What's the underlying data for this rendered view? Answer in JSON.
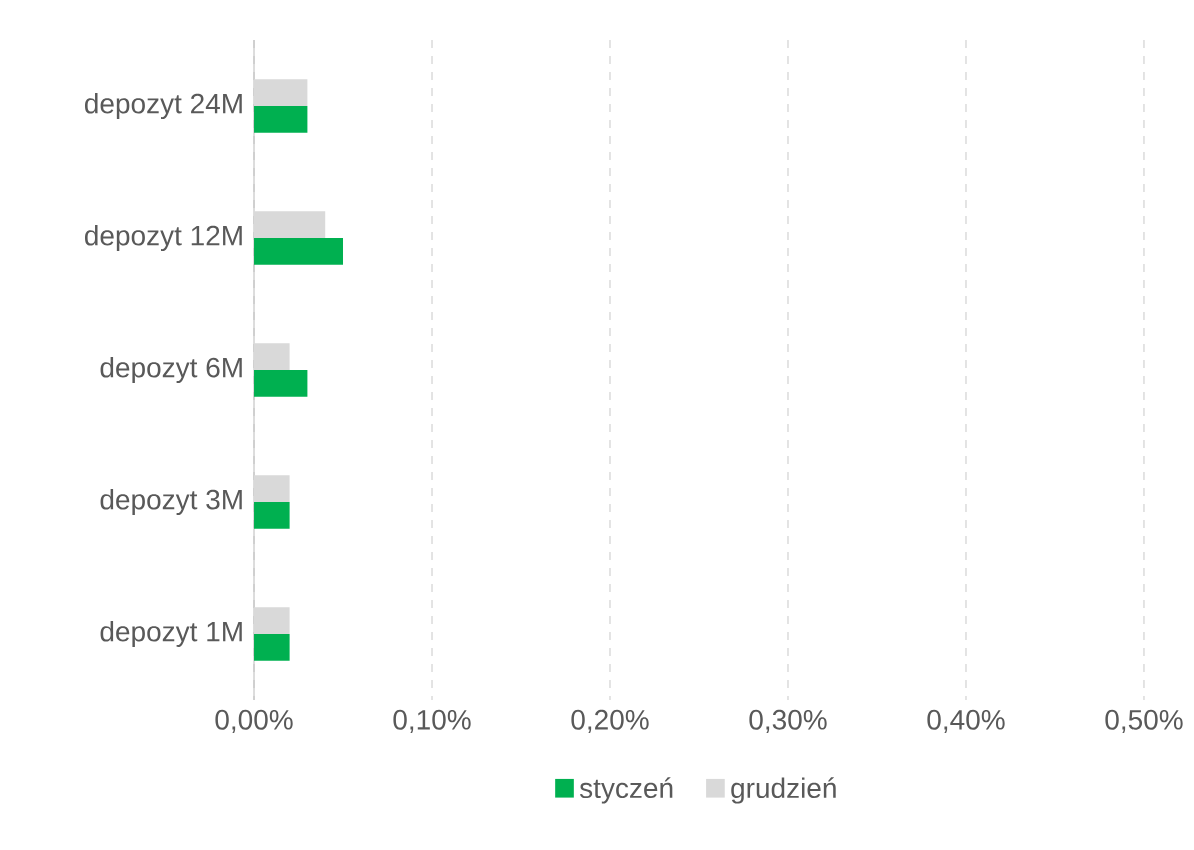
{
  "chart_data": {
    "type": "bar",
    "orientation": "horizontal",
    "categories": [
      "depozyt 24M",
      "depozyt 12M",
      "depozyt 6M",
      "depozyt 3M",
      "depozyt 1M"
    ],
    "series": [
      {
        "name": "styczeń",
        "color": "#00b050",
        "values": [
          0.03,
          0.05,
          0.03,
          0.02,
          0.02
        ]
      },
      {
        "name": "grudzień",
        "color": "#d9d9d9",
        "values": [
          0.03,
          0.04,
          0.02,
          0.02,
          0.02
        ]
      }
    ],
    "xlim": [
      0,
      0.5
    ],
    "xticks": [
      {
        "value": 0,
        "label": "0,00%"
      },
      {
        "value": 0.1,
        "label": "0,10%"
      },
      {
        "value": 0.2,
        "label": "0,20%"
      },
      {
        "value": 0.3,
        "label": "0,30%"
      },
      {
        "value": 0.4,
        "label": "0,40%"
      },
      {
        "value": 0.5,
        "label": "0,50%"
      }
    ],
    "grid": "x",
    "legend": "bottom"
  }
}
